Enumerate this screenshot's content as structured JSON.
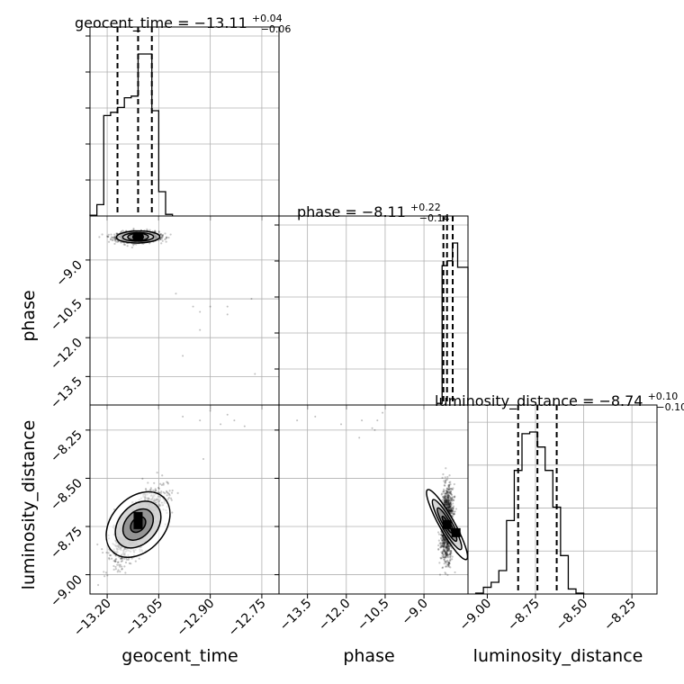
{
  "chart_data": {
    "type": "corner",
    "parameters": [
      "geocent_time",
      "phase",
      "luminosity_distance"
    ],
    "titles": {
      "geocent_time": {
        "prefix": "geocent_time = −13.11",
        "plus": "+0.04",
        "minus": "−0.06"
      },
      "phase": {
        "prefix": "phase = −8.11",
        "plus": "+0.22",
        "minus": "−0.14"
      },
      "luminosity_distance": {
        "prefix": "luminosity_distance = −8.74",
        "plus": "+0.10",
        "minus": "−0.10"
      }
    },
    "xlabels": {
      "geocent_time": "geocent_time",
      "phase": "phase",
      "luminosity_distance": "luminosity_distance"
    },
    "ylabels": {
      "phase": "phase",
      "luminosity_distance": "luminosity_distance"
    },
    "ranges": {
      "geocent_time": [
        -13.25,
        -12.7
      ],
      "phase": [
        -14.6,
        -7.3
      ],
      "luminosity_distance": [
        -9.1,
        -8.12
      ]
    },
    "ticks": {
      "geocent_time": {
        "values": [
          -13.2,
          -13.05,
          -12.9,
          -12.75
        ],
        "labels": [
          "−13.20",
          "−13.05",
          "−12.90",
          "−12.75"
        ]
      },
      "phase": {
        "values": [
          -13.5,
          -12.0,
          -10.5,
          -9.0
        ],
        "labels": [
          "−13.5",
          "−12.0",
          "−10.5",
          "−9.0"
        ]
      },
      "luminosity_distance": {
        "values": [
          -9.0,
          -8.75,
          -8.5,
          -8.25
        ],
        "labels": [
          "−9.00",
          "−8.75",
          "−8.50",
          "−8.25"
        ]
      }
    },
    "quantiles": {
      "geocent_time": [
        -13.17,
        -13.11,
        -13.07
      ],
      "phase": [
        -8.25,
        -8.11,
        -7.89
      ],
      "luminosity_distance": [
        -8.84,
        -8.74,
        -8.64
      ]
    },
    "histograms": {
      "geocent_time": {
        "edges": [
          -13.25,
          -13.23,
          -13.21,
          -13.19,
          -13.17,
          -13.15,
          -13.13,
          -13.11,
          -13.09,
          -13.07,
          -13.05,
          -13.03,
          -13.01
        ],
        "counts": [
          0.5,
          7,
          62,
          64,
          67,
          73,
          74,
          100,
          100,
          65,
          15,
          1
        ]
      },
      "phase": {
        "edges": [
          -8.5,
          -8.3,
          -8.1,
          -7.9,
          -7.7,
          -7.5,
          -7.3
        ],
        "counts": [
          1,
          86,
          89,
          100,
          85,
          85
        ]
      },
      "luminosity_distance": {
        "edges": [
          -9.06,
          -9.02,
          -8.98,
          -8.94,
          -8.9,
          -8.86,
          -8.82,
          -8.78,
          -8.74,
          -8.7,
          -8.66,
          -8.62,
          -8.58,
          -8.54,
          -8.5
        ],
        "counts": [
          0.5,
          4,
          7,
          14,
          44,
          74,
          96,
          97,
          88,
          74,
          52,
          23,
          3,
          0.5
        ]
      }
    },
    "grid": true
  }
}
